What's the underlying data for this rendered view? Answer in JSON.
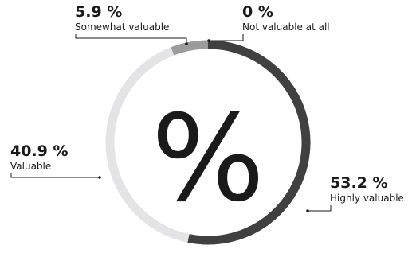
{
  "chart_data": {
    "type": "pie",
    "style": "donut",
    "center_label": "%",
    "categories": [
      "Highly valuable",
      "Valuable",
      "Somewhat valuable",
      "Not valuable at all"
    ],
    "values": [
      53.2,
      40.9,
      5.9,
      0
    ],
    "value_labels": [
      "53.2 %",
      "40.9 %",
      "5.9 %",
      "0 %"
    ],
    "colors": [
      "#404040",
      "#e4e4e6",
      "#9c9c9c",
      "#404040"
    ],
    "start": "top",
    "direction": "clockwise",
    "legend": "none"
  }
}
